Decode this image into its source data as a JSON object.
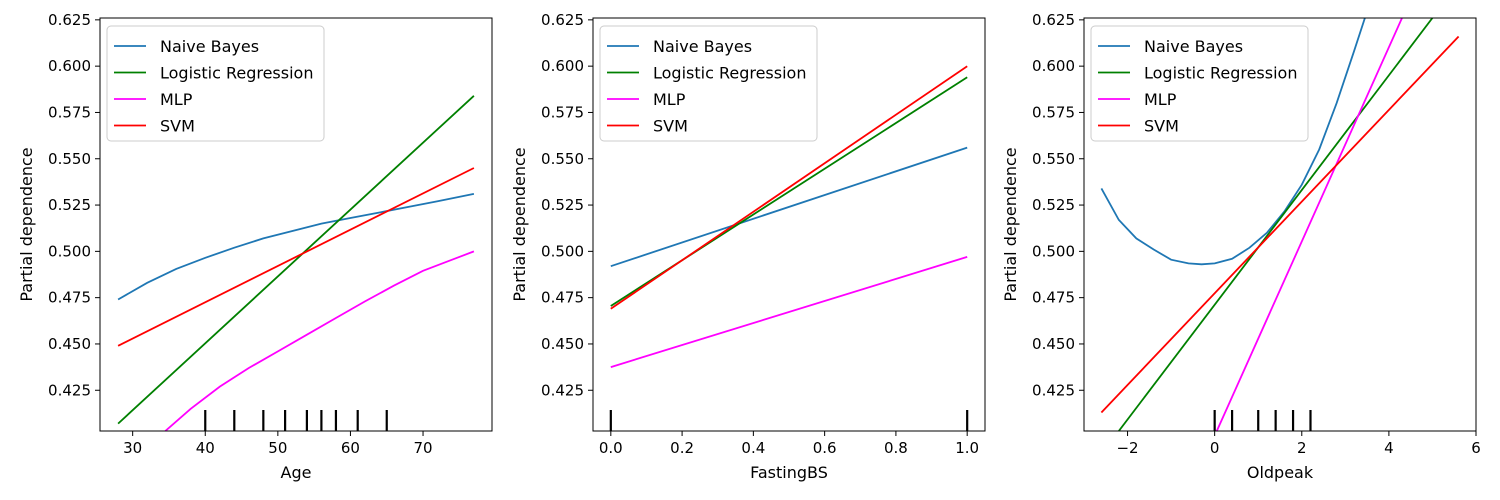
{
  "chart_data": [
    {
      "type": "line",
      "xlabel": "Age",
      "ylabel": "Partial dependence",
      "xlim": [
        25.5,
        79.5
      ],
      "ylim": [
        0.403,
        0.626
      ],
      "xticks": [
        30,
        40,
        50,
        60,
        70
      ],
      "xtick_labels": [
        "30",
        "40",
        "50",
        "60",
        "70"
      ],
      "yticks": [
        0.425,
        0.45,
        0.475,
        0.5,
        0.525,
        0.55,
        0.575,
        0.6,
        0.625
      ],
      "ytick_labels": [
        "0.425",
        "0.450",
        "0.475",
        "0.500",
        "0.525",
        "0.550",
        "0.575",
        "0.600",
        "0.625"
      ],
      "grid": false,
      "legend": "upper-left",
      "deciles": [
        40,
        44,
        48,
        51,
        54,
        56,
        58,
        61,
        65
      ],
      "series": [
        {
          "name": "Naive Bayes",
          "color": "#1f77b4",
          "x": [
            28,
            32,
            36,
            40,
            44,
            48,
            52,
            56,
            60,
            64,
            68,
            72,
            77
          ],
          "y": [
            0.474,
            0.483,
            0.4905,
            0.4965,
            0.502,
            0.507,
            0.511,
            0.515,
            0.518,
            0.521,
            0.524,
            0.527,
            0.531
          ]
        },
        {
          "name": "Logistic Regression",
          "color": "#008000",
          "x": [
            28,
            77
          ],
          "y": [
            0.407,
            0.584
          ]
        },
        {
          "name": "MLP",
          "color": "#ff00ff",
          "x": [
            34.5,
            38,
            42,
            46,
            50,
            54,
            58,
            62,
            66,
            70,
            74,
            77
          ],
          "y": [
            0.403,
            0.415,
            0.427,
            0.437,
            0.446,
            0.455,
            0.464,
            0.473,
            0.4815,
            0.4895,
            0.4955,
            0.5
          ]
        },
        {
          "name": "SVM",
          "color": "#ff0000",
          "x": [
            28,
            77
          ],
          "y": [
            0.449,
            0.545
          ]
        }
      ]
    },
    {
      "type": "line",
      "xlabel": "FastingBS",
      "ylabel": "Partial dependence",
      "xlim": [
        -0.05,
        1.05
      ],
      "ylim": [
        0.403,
        0.626
      ],
      "xticks": [
        0,
        0.2,
        0.4,
        0.6,
        0.8,
        1.0
      ],
      "xtick_labels": [
        "0.0",
        "0.2",
        "0.4",
        "0.6",
        "0.8",
        "1.0"
      ],
      "yticks": [
        0.425,
        0.45,
        0.475,
        0.5,
        0.525,
        0.55,
        0.575,
        0.6,
        0.625
      ],
      "ytick_labels": [
        "0.425",
        "0.450",
        "0.475",
        "0.500",
        "0.525",
        "0.550",
        "0.575",
        "0.600",
        "0.625"
      ],
      "grid": false,
      "legend": "upper-left",
      "deciles": [
        0,
        1
      ],
      "series": [
        {
          "name": "Naive Bayes",
          "color": "#1f77b4",
          "x": [
            0,
            1
          ],
          "y": [
            0.492,
            0.556
          ]
        },
        {
          "name": "Logistic Regression",
          "color": "#008000",
          "x": [
            0,
            1
          ],
          "y": [
            0.4705,
            0.594
          ]
        },
        {
          "name": "MLP",
          "color": "#ff00ff",
          "x": [
            0,
            1
          ],
          "y": [
            0.4375,
            0.497
          ]
        },
        {
          "name": "SVM",
          "color": "#ff0000",
          "x": [
            0,
            1
          ],
          "y": [
            0.469,
            0.6
          ]
        }
      ]
    },
    {
      "type": "line",
      "xlabel": "Oldpeak",
      "ylabel": "Partial dependence",
      "xlim": [
        -3,
        6
      ],
      "ylim": [
        0.403,
        0.626
      ],
      "xticks": [
        -2,
        0,
        2,
        4,
        6
      ],
      "xtick_labels": [
        "−2",
        "0",
        "2",
        "4",
        "6"
      ],
      "yticks": [
        0.425,
        0.45,
        0.475,
        0.5,
        0.525,
        0.55,
        0.575,
        0.6,
        0.625
      ],
      "ytick_labels": [
        "0.425",
        "0.450",
        "0.475",
        "0.500",
        "0.525",
        "0.550",
        "0.575",
        "0.600",
        "0.625"
      ],
      "grid": false,
      "legend": "upper-left",
      "deciles": [
        0,
        0.4,
        1,
        1.4,
        1.8,
        2.2
      ],
      "series": [
        {
          "name": "Naive Bayes",
          "color": "#1f77b4",
          "x": [
            -2.6,
            -2.2,
            -1.8,
            -1.4,
            -1.0,
            -0.6,
            -0.3,
            0.0,
            0.4,
            0.8,
            1.2,
            1.6,
            2.0,
            2.4,
            2.8,
            3.2,
            3.45
          ],
          "y": [
            0.534,
            0.517,
            0.507,
            0.501,
            0.4955,
            0.4935,
            0.493,
            0.4935,
            0.496,
            0.502,
            0.51,
            0.5215,
            0.536,
            0.555,
            0.58,
            0.608,
            0.626
          ]
        },
        {
          "name": "Logistic Regression",
          "color": "#008000",
          "x": [
            -2.2,
            5.0
          ],
          "y": [
            0.403,
            0.626
          ]
        },
        {
          "name": "MLP",
          "color": "#ff00ff",
          "x": [
            0.05,
            4.3
          ],
          "y": [
            0.403,
            0.626
          ]
        },
        {
          "name": "SVM",
          "color": "#ff0000",
          "x": [
            -2.6,
            5.6
          ],
          "y": [
            0.413,
            0.616
          ]
        }
      ]
    }
  ]
}
